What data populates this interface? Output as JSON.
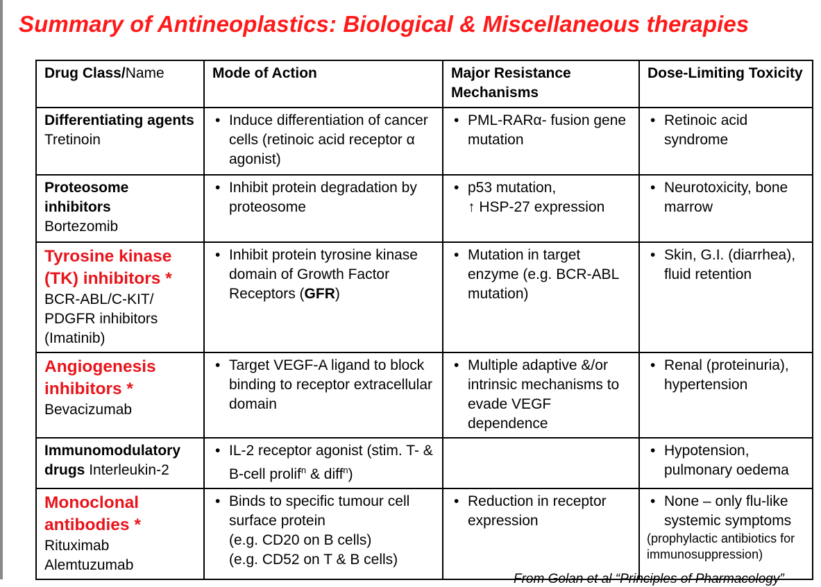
{
  "title": "Summary of Antineoplastics: Biological & Miscellaneous therapies",
  "headers": {
    "drug_bold": "Drug Class/",
    "drug_rest": "Name",
    "mode": "Mode of Action",
    "resist": "Major Resistance Mechanisms",
    "tox": "Dose-Limiting Toxicity"
  },
  "rows": [
    {
      "class": "Differentiating agents",
      "names": "Tretinoin",
      "mode": "Induce differentiation of cancer cells (retinoic acid receptor α agonist)",
      "resist": "PML-RARα- fusion gene mutation",
      "tox": "Retinoic acid syndrome"
    },
    {
      "class": "Proteosome inhibitors",
      "names": "Bortezomib",
      "mode": "Inhibit protein degradation by proteosome",
      "resist_1": "p53 mutation,",
      "resist_2": "↑ HSP-27 expression",
      "tox": "Neurotoxicity, bone marrow"
    },
    {
      "class": "Tyrosine kinase (TK) inhibitors *",
      "names": "BCR-ABL/C-KIT/ PDGFR inhibitors (Imatinib)",
      "mode_pre": "Inhibit protein tyrosine kinase domain of Growth Factor Receptors (",
      "mode_bold": "GFR",
      "mode_post": ")",
      "resist": "Mutation in target enzyme (e.g. BCR-ABL mutation)",
      "tox": "Skin, G.I. (diarrhea), fluid retention"
    },
    {
      "class": "Angiogenesis inhibitors *",
      "names": "Bevacizumab",
      "mode": "Target VEGF-A ligand to block binding to receptor extracellular domain",
      "resist": "Multiple adaptive &/or intrinsic mechanisms to evade VEGF dependence",
      "tox": "Renal (proteinuria), hypertension"
    },
    {
      "class_1": "Immunomodulatory",
      "class_2": "drugs",
      "names": "Interleukin-2",
      "mode_1": "IL-2 receptor agonist (stim. T- & B-cell prolif",
      "sup1": "n",
      "mode_2": " & diff",
      "sup2": "n",
      "mode_3": ")",
      "resist": "",
      "tox": "Hypotension, pulmonary oedema"
    },
    {
      "class": "Monoclonal antibodies *",
      "names_1": "Rituximab",
      "names_2": "Alemtuzumab",
      "mode_1": "Binds to specific tumour cell surface protein",
      "mode_2": "(e.g. CD20 on B cells)",
      "mode_3": "(e.g. CD52 on T & B cells)",
      "resist": "Reduction in receptor expression",
      "tox": "None – only flu-like systemic symptoms",
      "tox_note": "(prophylactic antibiotics for immunosuppression)"
    }
  ],
  "footer": "From Golan et al “Principles of Pharmacology”"
}
